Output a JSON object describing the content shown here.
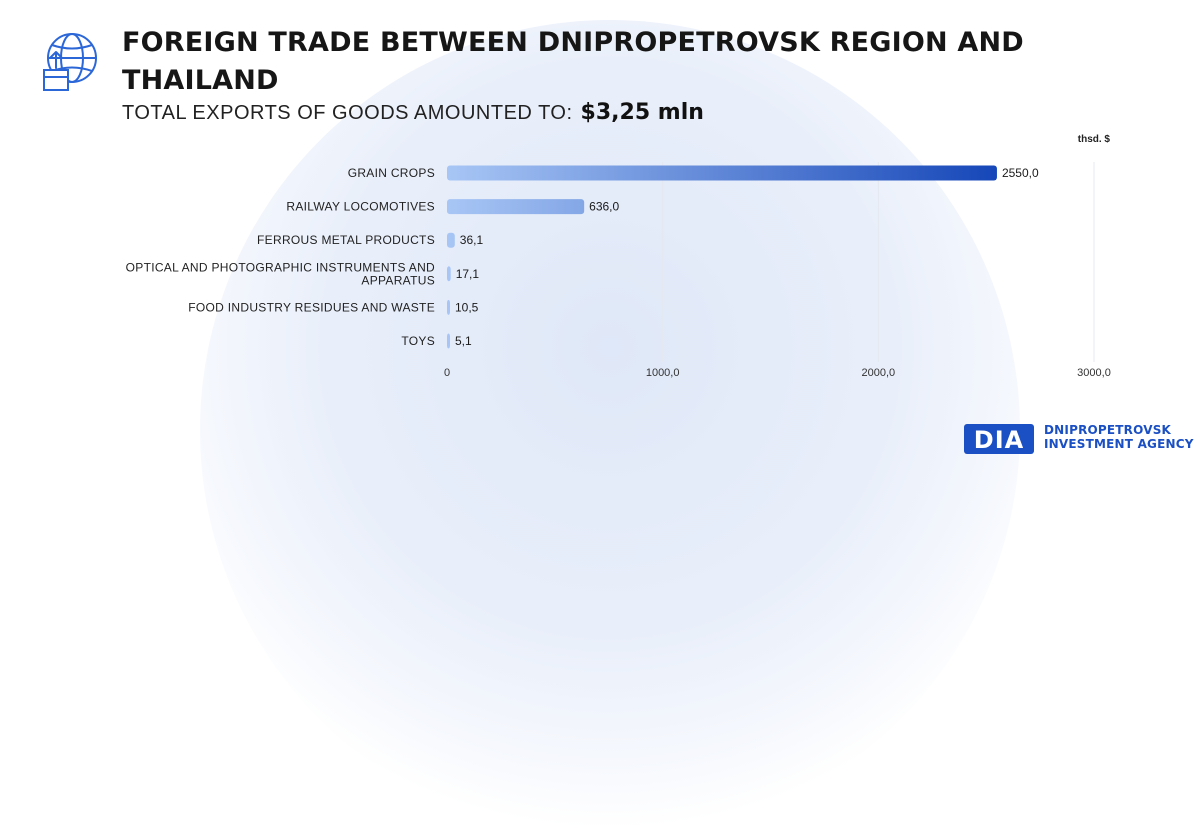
{
  "header": {
    "title": "FOREIGN TRADE BETWEEN DNIPROPETROVSK REGION AND THAILAND",
    "subtitle_label": "TOTAL EXPORTS OF GOODS AMOUNTED TO:",
    "subtitle_value": "$3,25 mln",
    "icon": "globe-box-export-icon"
  },
  "chart_data": {
    "type": "bar",
    "orientation": "horizontal",
    "unit_label": "thsd. $",
    "categories": [
      "GRAIN CROPS",
      "RAILWAY LOCOMOTIVES",
      "FERROUS METAL PRODUCTS",
      "OPTICAL AND PHOTOGRAPHIC INSTRUMENTS AND APPARATUS",
      "FOOD INDUSTRY RESIDUES AND WASTE",
      "TOYS"
    ],
    "category_lines": [
      [
        "GRAIN CROPS"
      ],
      [
        "RAILWAY LOCOMOTIVES"
      ],
      [
        "FERROUS METAL PRODUCTS"
      ],
      [
        "OPTICAL AND PHOTOGRAPHIC INSTRUMENTS AND",
        "APPARATUS"
      ],
      [
        "FOOD INDUSTRY RESIDUES AND WASTE"
      ],
      [
        "TOYS"
      ]
    ],
    "values": [
      2550.0,
      636.0,
      36.1,
      17.1,
      10.5,
      5.1
    ],
    "value_labels": [
      "2550,0",
      "636,0",
      "36,1",
      "17,1",
      "10,5",
      "5,1"
    ],
    "xlim": [
      0,
      3000
    ],
    "xticks": [
      0,
      1000,
      2000,
      3000
    ],
    "xtick_labels": [
      "0",
      "1000,0",
      "2000,0",
      "3000,0"
    ],
    "grid": true,
    "colors": {
      "bar_start": "#a8c6f5",
      "bar_end": "#1546b8",
      "grid": "#e4e8ef",
      "text": "#1a1a1a"
    }
  },
  "logo": {
    "mark": "DIA",
    "line1": "DNIPROPETROVSK",
    "line2": "INVESTMENT AGENCY",
    "color": "#1b4fc4"
  }
}
